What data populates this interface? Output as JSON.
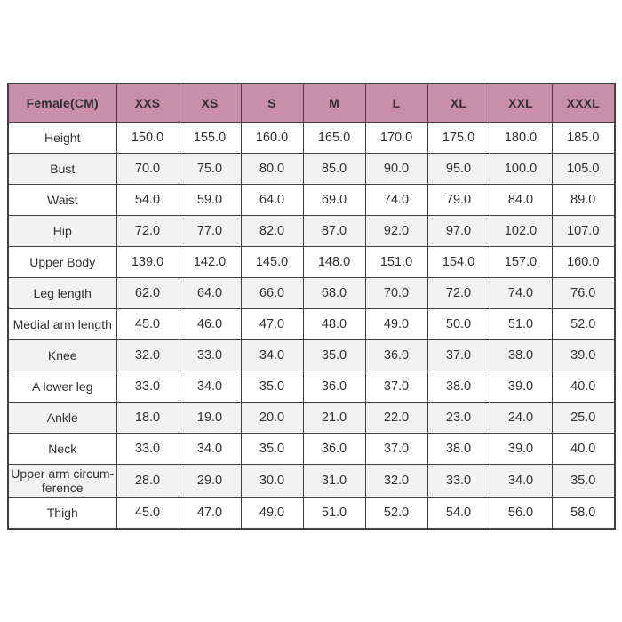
{
  "chart_data": {
    "type": "table",
    "title": "Female(CM)",
    "columns": [
      "Female(CM)",
      "XXS",
      "XS",
      "S",
      "M",
      "L",
      "XL",
      "XXL",
      "XXXL"
    ],
    "rows": [
      {
        "label": "Height",
        "values": [
          "150.0",
          "155.0",
          "160.0",
          "165.0",
          "170.0",
          "175.0",
          "180.0",
          "185.0"
        ]
      },
      {
        "label": "Bust",
        "values": [
          "70.0",
          "75.0",
          "80.0",
          "85.0",
          "90.0",
          "95.0",
          "100.0",
          "105.0"
        ]
      },
      {
        "label": "Waist",
        "values": [
          "54.0",
          "59.0",
          "64.0",
          "69.0",
          "74.0",
          "79.0",
          "84.0",
          "89.0"
        ]
      },
      {
        "label": "Hip",
        "values": [
          "72.0",
          "77.0",
          "82.0",
          "87.0",
          "92.0",
          "97.0",
          "102.0",
          "107.0"
        ]
      },
      {
        "label": "Upper Body",
        "values": [
          "139.0",
          "142.0",
          "145.0",
          "148.0",
          "151.0",
          "154.0",
          "157.0",
          "160.0"
        ]
      },
      {
        "label": "Leg length",
        "values": [
          "62.0",
          "64.0",
          "66.0",
          "68.0",
          "70.0",
          "72.0",
          "74.0",
          "76.0"
        ]
      },
      {
        "label": "Medial arm length",
        "values": [
          "45.0",
          "46.0",
          "47.0",
          "48.0",
          "49.0",
          "50.0",
          "51.0",
          "52.0"
        ]
      },
      {
        "label": "Knee",
        "values": [
          "32.0",
          "33.0",
          "34.0",
          "35.0",
          "36.0",
          "37.0",
          "38.0",
          "39.0"
        ]
      },
      {
        "label": "A lower leg",
        "values": [
          "33.0",
          "34.0",
          "35.0",
          "36.0",
          "37.0",
          "38.0",
          "39.0",
          "40.0"
        ]
      },
      {
        "label": "Ankle",
        "values": [
          "18.0",
          "19.0",
          "20.0",
          "21.0",
          "22.0",
          "23.0",
          "24.0",
          "25.0"
        ]
      },
      {
        "label": "Neck",
        "values": [
          "33.0",
          "34.0",
          "35.0",
          "36.0",
          "37.0",
          "38.0",
          "39.0",
          "40.0"
        ]
      },
      {
        "label": "Upper arm circum-\nference",
        "values": [
          "28.0",
          "29.0",
          "30.0",
          "31.0",
          "32.0",
          "33.0",
          "34.0",
          "35.0"
        ]
      },
      {
        "label": "Thigh",
        "values": [
          "45.0",
          "47.0",
          "49.0",
          "51.0",
          "52.0",
          "54.0",
          "56.0",
          "58.0"
        ]
      }
    ],
    "layout": {
      "header_position": "top",
      "row_label_column": "left",
      "grid": "on",
      "alternating_rows": true
    }
  },
  "colors": {
    "header_bg": "#c98ea8",
    "header_text": "#ffffff",
    "alt_row_bg": "#f2f2f2",
    "border": "#404040",
    "text": "#303030",
    "page_bg": "#ffffff"
  }
}
